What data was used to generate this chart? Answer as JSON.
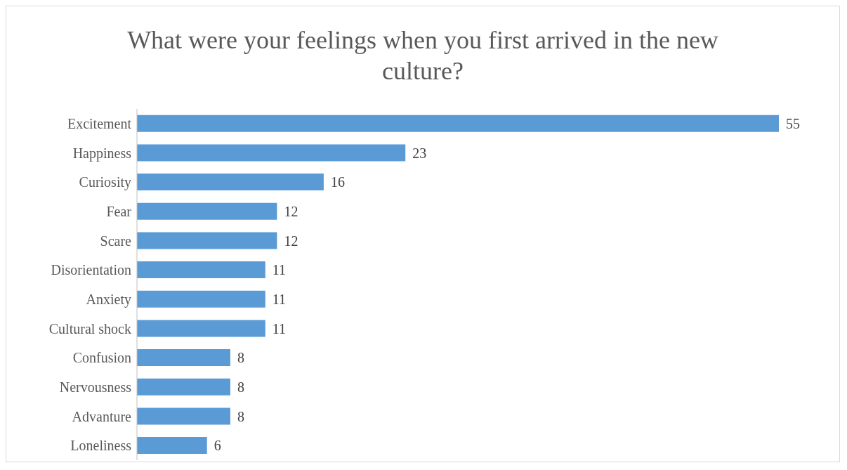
{
  "chart_data": {
    "type": "bar",
    "orientation": "horizontal",
    "title": "What were your feelings when you first arrived in the new culture?",
    "categories": [
      "Excitement",
      "Happiness",
      "Curiosity",
      "Fear",
      "Scare",
      "Disorientation",
      "Anxiety",
      "Cultural shock",
      "Confusion",
      "Nervousness",
      "Advanture",
      "Loneliness"
    ],
    "values": [
      55,
      23,
      16,
      12,
      12,
      11,
      11,
      11,
      8,
      8,
      8,
      6
    ],
    "color": "#5b9bd5",
    "data_labels": true,
    "grid": false
  }
}
